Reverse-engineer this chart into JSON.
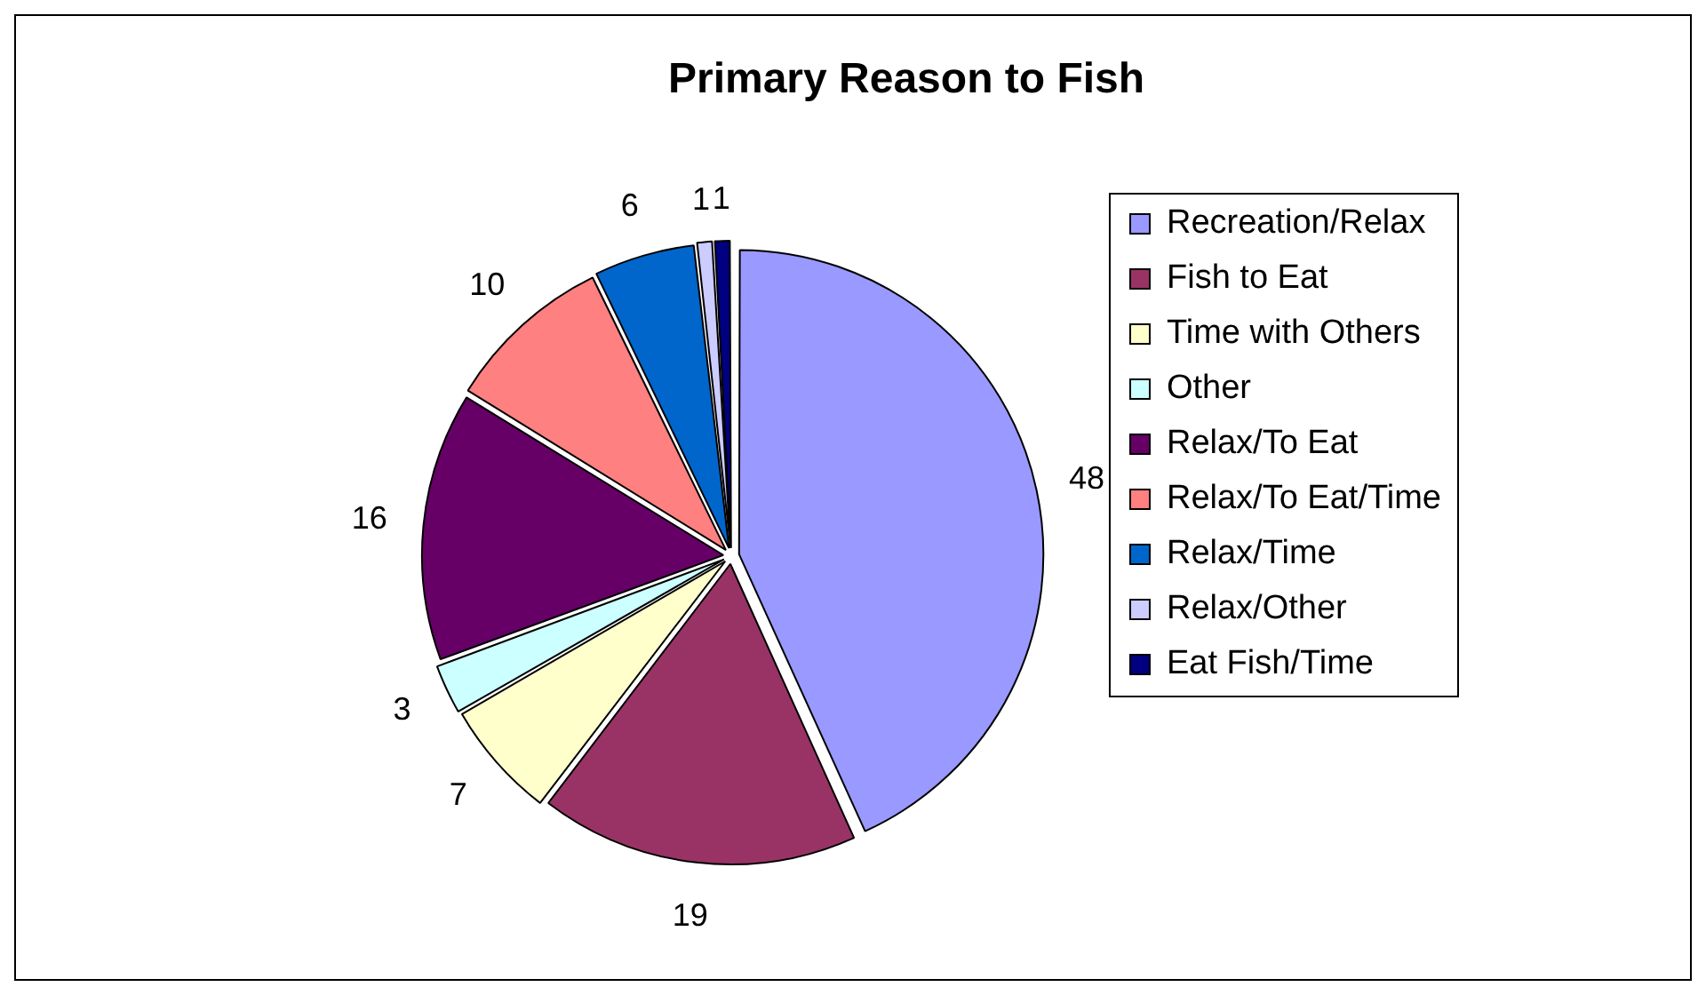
{
  "chart_data": {
    "type": "pie",
    "title": "Primary Reason to Fish",
    "categories": [
      "Recreation/Relax",
      "Fish to Eat",
      "Time with Others",
      "Other",
      "Relax/To Eat",
      "Relax/To Eat/Time",
      "Relax/Time",
      "Relax/Other",
      "Eat Fish/Time"
    ],
    "values": [
      48,
      19,
      7,
      3,
      16,
      10,
      6,
      1,
      1
    ],
    "colors": [
      "#9999ff",
      "#993366",
      "#ffffcc",
      "#ccffff",
      "#660066",
      "#ff8080",
      "#0066cc",
      "#ccccff",
      "#000080"
    ],
    "data_labels": true,
    "legend": "right"
  }
}
